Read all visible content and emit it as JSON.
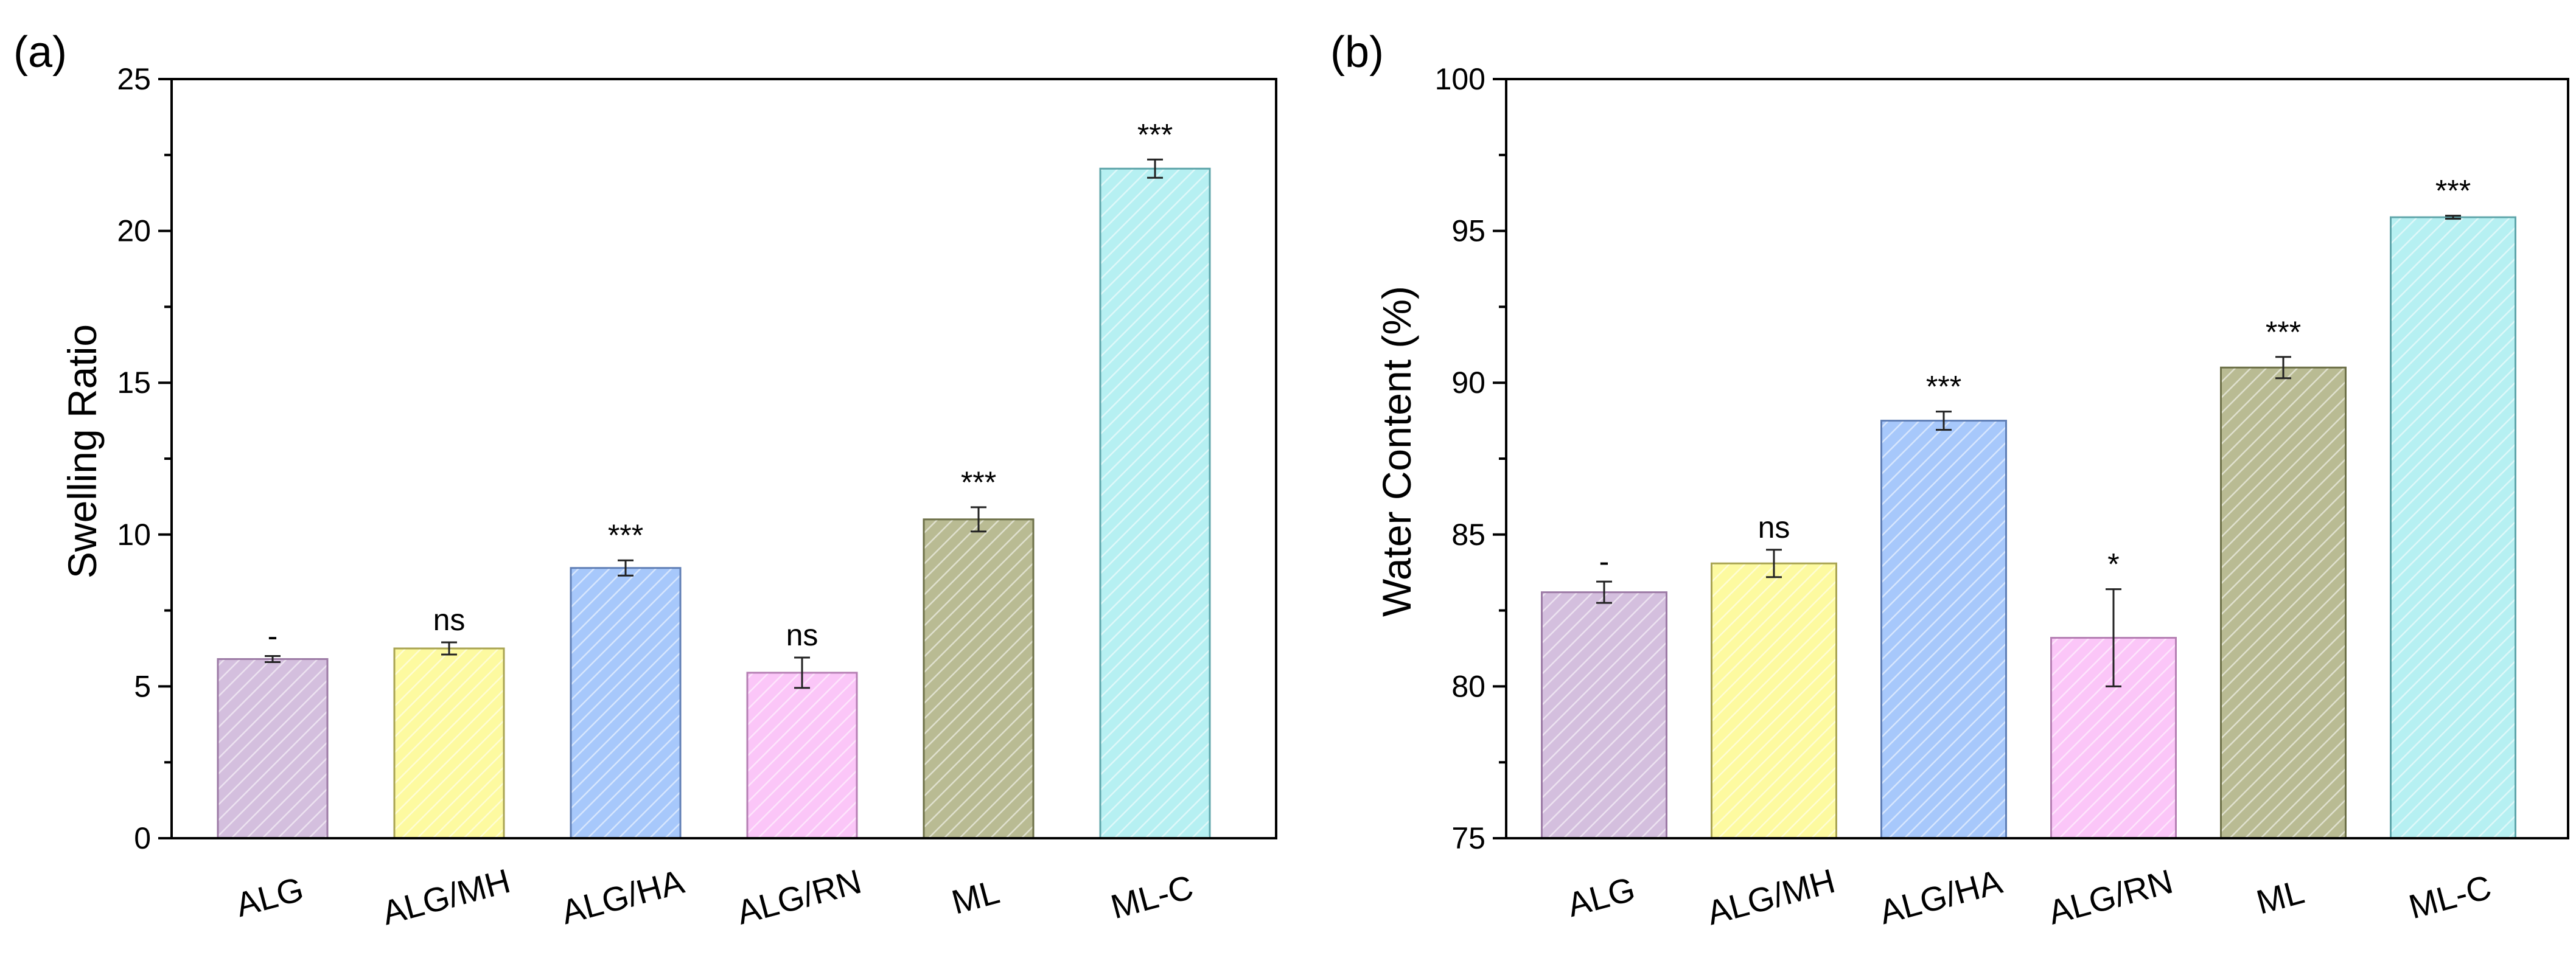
{
  "chart_data": [
    {
      "type": "bar",
      "panel_label": "(a)",
      "title": "",
      "xlabel": "",
      "ylabel": "Swelling Ratio",
      "ylim": [
        0,
        25
      ],
      "yticks": [
        0,
        5,
        10,
        15,
        20,
        25
      ],
      "ytick_labels": [
        "0",
        "5",
        "10",
        "15",
        "20",
        "25"
      ],
      "categories": [
        "ALG",
        "ALG/MH",
        "ALG/HA",
        "ALG/RN",
        "ML",
        "ML-C"
      ],
      "values": [
        5.9,
        6.25,
        8.9,
        5.45,
        10.5,
        22.05
      ],
      "errors": [
        0.1,
        0.2,
        0.25,
        0.5,
        0.4,
        0.3
      ],
      "significance": [
        "-",
        "ns",
        "***",
        "ns",
        "***",
        "***"
      ],
      "grid": false
    },
    {
      "type": "bar",
      "panel_label": "(b)",
      "title": "",
      "xlabel": "",
      "ylabel": "Water Content (%)",
      "ylim": [
        75,
        100
      ],
      "yticks": [
        75,
        80,
        85,
        90,
        95,
        100
      ],
      "ytick_labels": [
        "75",
        "80",
        "85",
        "90",
        "95",
        "100"
      ],
      "categories": [
        "ALG",
        "ALG/MH",
        "ALG/HA",
        "ALG/RN",
        "ML",
        "ML-C"
      ],
      "values": [
        83.1,
        84.05,
        88.75,
        81.6,
        90.5,
        95.45
      ],
      "errors": [
        0.35,
        0.45,
        0.3,
        1.6,
        0.35,
        0.05
      ],
      "significance": [
        "-",
        "ns",
        "***",
        "*",
        "***",
        "***"
      ],
      "grid": false
    }
  ],
  "colors": {
    "bar_fills": [
      "#d4bfde",
      "#fdfaa0",
      "#a7c8fb",
      "#fbc6f8",
      "#b9bb93",
      "#b6f0f2"
    ],
    "bar_strokes": [
      "#9c7aa5",
      "#a9a453",
      "#5f7eb5",
      "#b57fb3",
      "#6d7048",
      "#5fa5aa"
    ]
  }
}
